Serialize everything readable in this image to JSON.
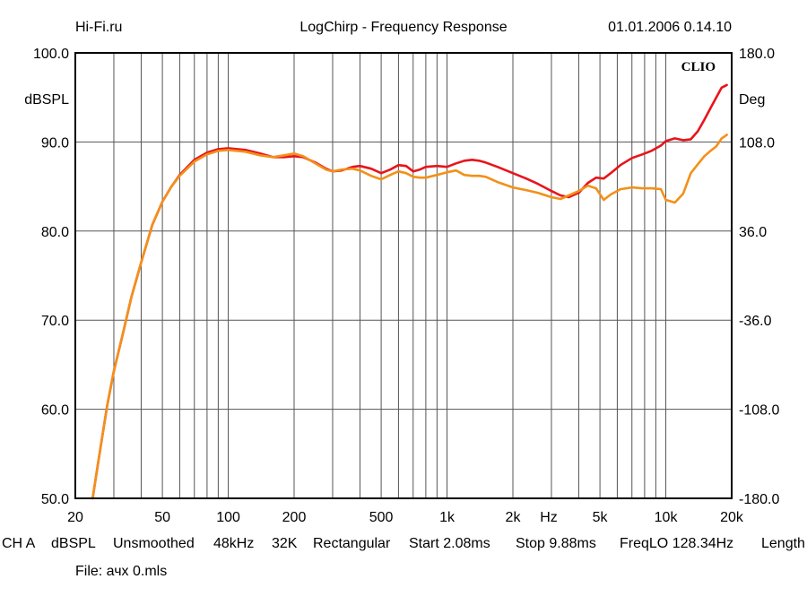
{
  "header": {
    "left": "Hi-Fi.ru",
    "center": "LogChirp - Frequency Response",
    "right": "01.01.2006 0.14.10"
  },
  "brand": "CLIO",
  "footer": {
    "settings": [
      "CH A",
      "dBSPL",
      "Unsmoothed",
      "48kHz",
      "32K",
      "Rectangular",
      "Start 2.08ms",
      "Stop 9.88ms",
      "FreqLO 128.34Hz",
      "Length"
    ],
    "file": "File: ачх 0.mls"
  },
  "chart_data": {
    "type": "line",
    "title": "LogChirp - Frequency Response",
    "xlabel": "Hz",
    "ylabel": "dBSPL",
    "y2label": "Deg",
    "xscale": "log",
    "xlim": [
      20,
      20000
    ],
    "ylim": [
      50,
      100
    ],
    "y2lim": [
      -180,
      180
    ],
    "grid": true,
    "x_ticks": [
      {
        "value": 20,
        "label": "20"
      },
      {
        "value": 50,
        "label": "50"
      },
      {
        "value": 100,
        "label": "100"
      },
      {
        "value": 200,
        "label": "200"
      },
      {
        "value": 500,
        "label": "500"
      },
      {
        "value": 1000,
        "label": "1k"
      },
      {
        "value": 2000,
        "label": "2k"
      },
      {
        "value": 5000,
        "label": "5k"
      },
      {
        "value": 10000,
        "label": "10k"
      },
      {
        "value": 20000,
        "label": "20k"
      }
    ],
    "y_ticks": [
      {
        "value": 50,
        "label": "50.0"
      },
      {
        "value": 60,
        "label": "60.0"
      },
      {
        "value": 70,
        "label": "70.0"
      },
      {
        "value": 80,
        "label": "80.0"
      },
      {
        "value": 90,
        "label": "90.0"
      },
      {
        "value": 100,
        "label": "100.0"
      }
    ],
    "y2_ticks": [
      {
        "value": -180,
        "label": "-180.0"
      },
      {
        "value": -108,
        "label": "-108.0"
      },
      {
        "value": -36,
        "label": "-36.0"
      },
      {
        "value": 36,
        "label": "36.0"
      },
      {
        "value": 108,
        "label": "108.0"
      },
      {
        "value": 180,
        "label": "180.0"
      }
    ],
    "series": [
      {
        "color": "#e8141b",
        "points": [
          [
            24,
            50.0
          ],
          [
            26,
            55.5
          ],
          [
            28,
            60.5
          ],
          [
            30,
            64.3
          ],
          [
            33,
            68.5
          ],
          [
            36,
            72.5
          ],
          [
            40,
            76.5
          ],
          [
            45,
            80.7
          ],
          [
            50,
            83.3
          ],
          [
            55,
            85.0
          ],
          [
            60,
            86.3
          ],
          [
            70,
            88.0
          ],
          [
            80,
            88.8
          ],
          [
            90,
            89.2
          ],
          [
            100,
            89.3
          ],
          [
            120,
            89.1
          ],
          [
            140,
            88.7
          ],
          [
            160,
            88.3
          ],
          [
            180,
            88.3
          ],
          [
            200,
            88.4
          ],
          [
            220,
            88.3
          ],
          [
            250,
            87.7
          ],
          [
            280,
            87.0
          ],
          [
            300,
            86.7
          ],
          [
            330,
            86.8
          ],
          [
            370,
            87.2
          ],
          [
            400,
            87.3
          ],
          [
            450,
            87.0
          ],
          [
            500,
            86.5
          ],
          [
            550,
            86.9
          ],
          [
            600,
            87.4
          ],
          [
            650,
            87.3
          ],
          [
            700,
            86.7
          ],
          [
            750,
            86.9
          ],
          [
            800,
            87.2
          ],
          [
            900,
            87.3
          ],
          [
            1000,
            87.2
          ],
          [
            1100,
            87.6
          ],
          [
            1200,
            87.9
          ],
          [
            1300,
            88.0
          ],
          [
            1400,
            87.9
          ],
          [
            1500,
            87.7
          ],
          [
            1700,
            87.2
          ],
          [
            2000,
            86.5
          ],
          [
            2300,
            85.9
          ],
          [
            2600,
            85.3
          ],
          [
            3000,
            84.5
          ],
          [
            3300,
            84.0
          ],
          [
            3600,
            83.8
          ],
          [
            4000,
            84.3
          ],
          [
            4400,
            85.4
          ],
          [
            4800,
            86.0
          ],
          [
            5200,
            85.9
          ],
          [
            5600,
            86.5
          ],
          [
            6200,
            87.4
          ],
          [
            7000,
            88.2
          ],
          [
            7800,
            88.6
          ],
          [
            8600,
            89.0
          ],
          [
            9500,
            89.6
          ],
          [
            10000,
            90.1
          ],
          [
            11000,
            90.4
          ],
          [
            12000,
            90.2
          ],
          [
            13000,
            90.3
          ],
          [
            14000,
            91.2
          ],
          [
            15000,
            92.5
          ],
          [
            16000,
            93.8
          ],
          [
            17000,
            95.0
          ],
          [
            18000,
            96.1
          ],
          [
            19000,
            96.4
          ]
        ]
      },
      {
        "color": "#f39019",
        "points": [
          [
            24,
            50.0
          ],
          [
            26,
            55.5
          ],
          [
            28,
            60.5
          ],
          [
            30,
            64.3
          ],
          [
            33,
            68.5
          ],
          [
            36,
            72.5
          ],
          [
            40,
            76.5
          ],
          [
            45,
            80.7
          ],
          [
            50,
            83.3
          ],
          [
            55,
            85.0
          ],
          [
            60,
            86.2
          ],
          [
            70,
            87.8
          ],
          [
            80,
            88.6
          ],
          [
            90,
            89.0
          ],
          [
            100,
            89.1
          ],
          [
            120,
            88.9
          ],
          [
            140,
            88.5
          ],
          [
            160,
            88.3
          ],
          [
            180,
            88.5
          ],
          [
            200,
            88.7
          ],
          [
            220,
            88.4
          ],
          [
            250,
            87.6
          ],
          [
            280,
            86.9
          ],
          [
            300,
            86.7
          ],
          [
            330,
            86.9
          ],
          [
            370,
            87.0
          ],
          [
            400,
            86.8
          ],
          [
            450,
            86.2
          ],
          [
            500,
            85.8
          ],
          [
            550,
            86.3
          ],
          [
            600,
            86.7
          ],
          [
            650,
            86.5
          ],
          [
            700,
            86.1
          ],
          [
            750,
            86.0
          ],
          [
            800,
            86.0
          ],
          [
            900,
            86.3
          ],
          [
            1000,
            86.6
          ],
          [
            1100,
            86.8
          ],
          [
            1200,
            86.3
          ],
          [
            1300,
            86.2
          ],
          [
            1400,
            86.2
          ],
          [
            1500,
            86.1
          ],
          [
            1700,
            85.5
          ],
          [
            2000,
            84.9
          ],
          [
            2300,
            84.6
          ],
          [
            2600,
            84.3
          ],
          [
            3000,
            83.8
          ],
          [
            3300,
            83.6
          ],
          [
            3600,
            84.0
          ],
          [
            4000,
            84.5
          ],
          [
            4400,
            85.1
          ],
          [
            4800,
            84.8
          ],
          [
            5200,
            83.5
          ],
          [
            5600,
            84.1
          ],
          [
            6200,
            84.7
          ],
          [
            7000,
            84.9
          ],
          [
            7800,
            84.8
          ],
          [
            8600,
            84.8
          ],
          [
            9500,
            84.7
          ],
          [
            10000,
            83.5
          ],
          [
            11000,
            83.2
          ],
          [
            12000,
            84.2
          ],
          [
            13000,
            86.5
          ],
          [
            14000,
            87.5
          ],
          [
            15000,
            88.4
          ],
          [
            16000,
            89.0
          ],
          [
            17000,
            89.5
          ],
          [
            18000,
            90.4
          ],
          [
            19000,
            90.8
          ]
        ]
      }
    ]
  }
}
